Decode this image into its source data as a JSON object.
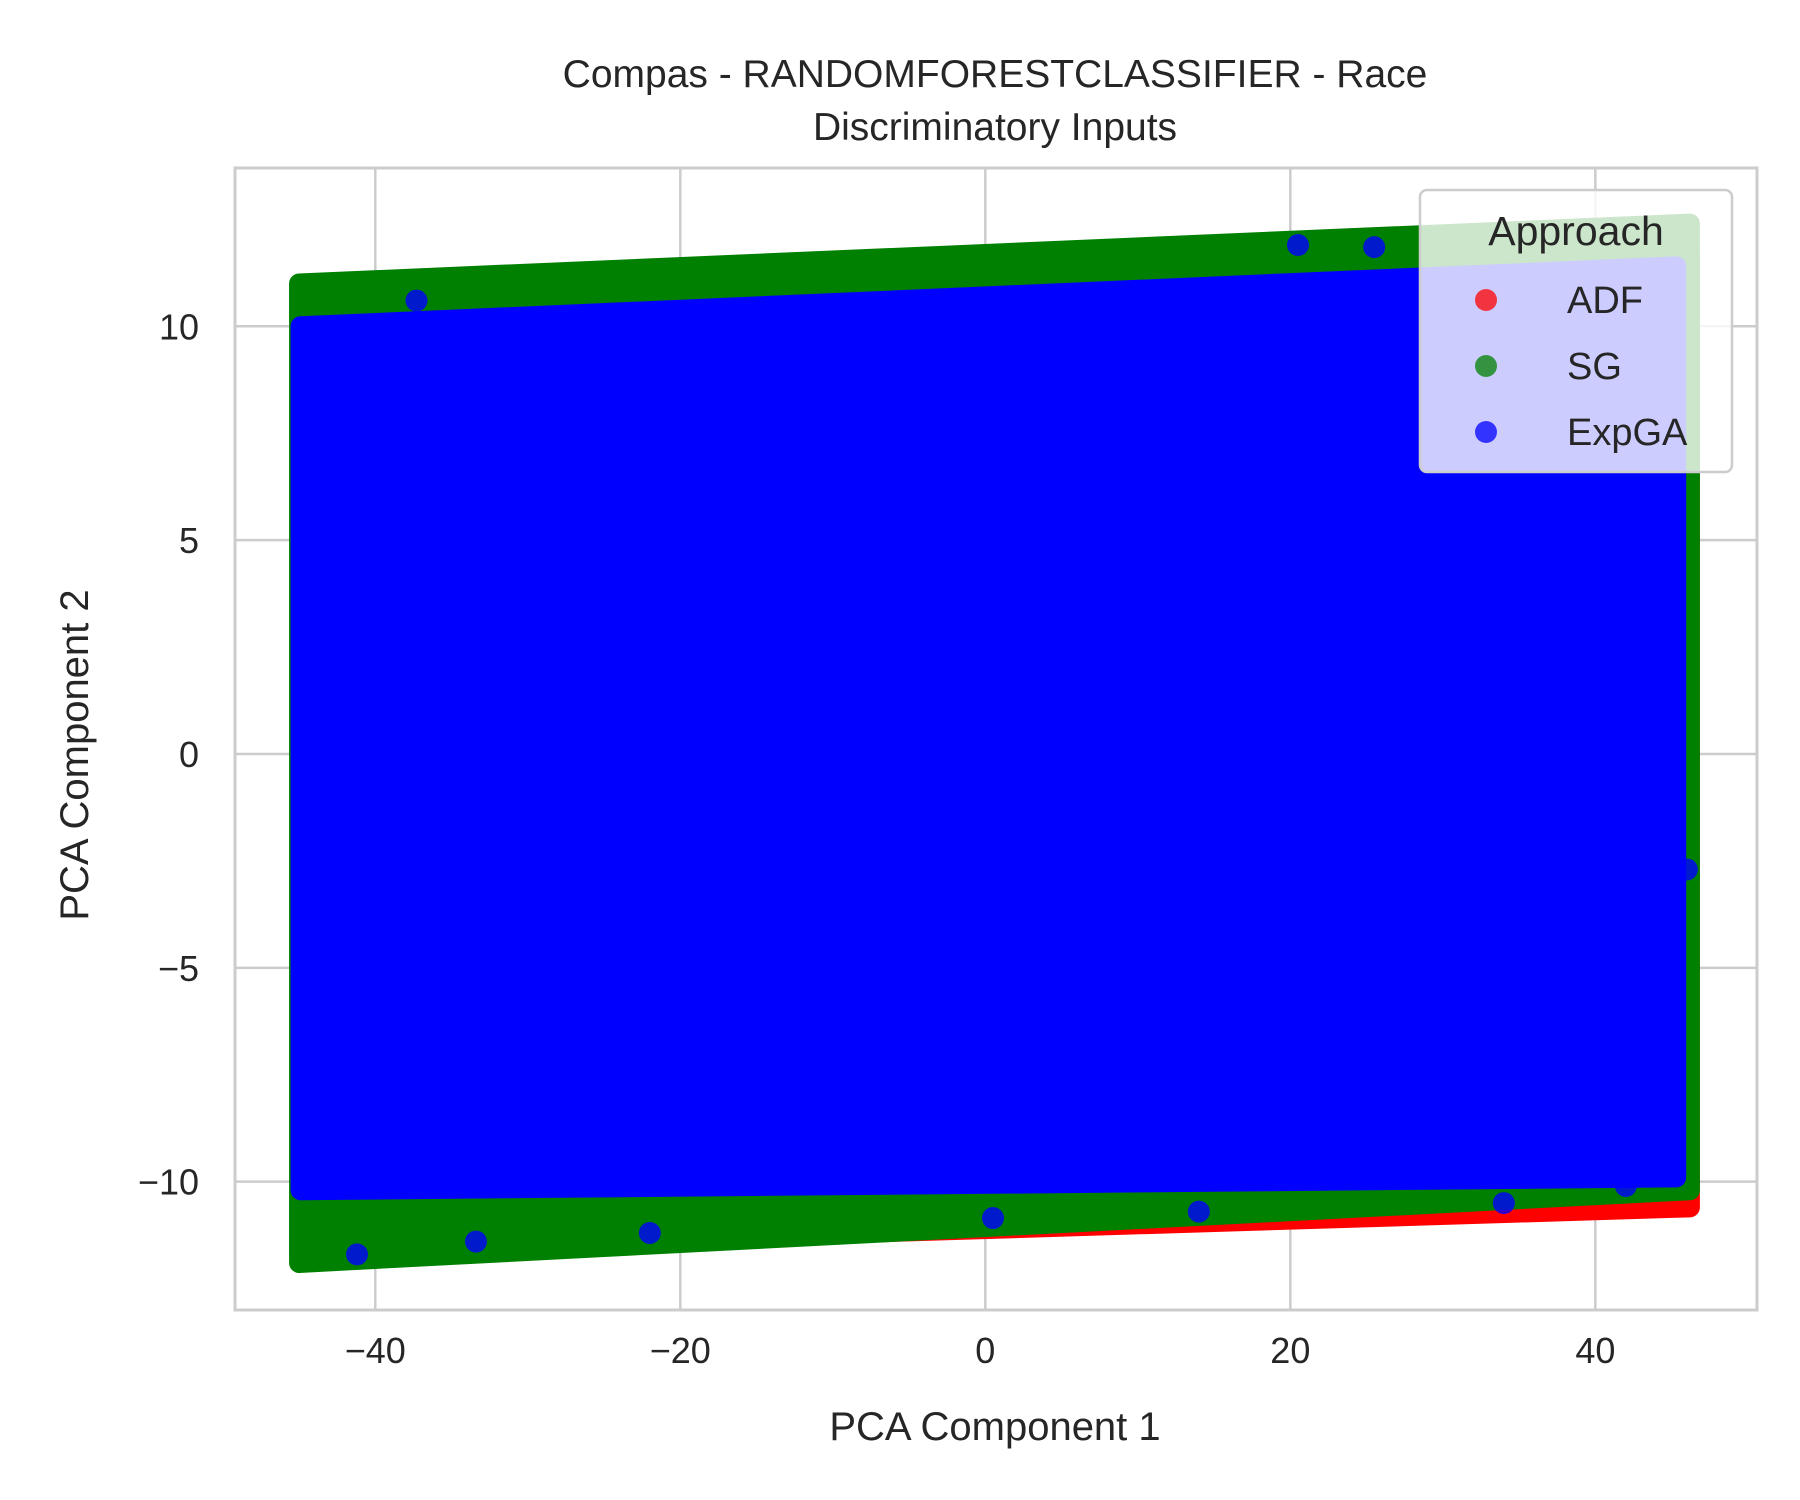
{
  "chart_data": {
    "type": "scatter",
    "title": "Compas - RANDOMFORESTCLASSIFIER - Race",
    "subtitle": "Discriminatory Inputs",
    "xlabel": "PCA Component 1",
    "ylabel": "PCA Component 2",
    "xlim": [
      -49.2,
      50.6
    ],
    "ylim": [
      -13,
      13.7
    ],
    "xticks": [
      -40,
      -20,
      0,
      20,
      40
    ],
    "yticks": [
      -10,
      -5,
      0,
      5,
      10
    ],
    "xtick_labels": [
      "−40",
      "−20",
      "0",
      "20",
      "40"
    ],
    "ytick_labels": [
      "−10",
      "−5",
      "0",
      "5",
      "10"
    ],
    "grid": true,
    "legend": {
      "title": "Approach",
      "position": "top-right",
      "entries": [
        "ADF",
        "SG",
        "ExpGA"
      ]
    },
    "series": [
      {
        "name": "ADF",
        "color": "#ff0000",
        "region": [
          [
            -44.9,
            -11.6
          ],
          [
            46.2,
            -10.6
          ],
          [
            46.2,
            11.7
          ],
          [
            -44.9,
            10.6
          ]
        ],
        "points": [
          [
            -15,
            -11.3
          ],
          [
            10,
            -10.95
          ],
          [
            26,
            -10.75
          ],
          [
            30,
            -10.6
          ],
          [
            36,
            -10.55
          ],
          [
            40,
            -10.3
          ],
          [
            -1,
            -11.05
          ]
        ]
      },
      {
        "name": "SG",
        "color": "#008000",
        "region": [
          [
            -45,
            -11.9
          ],
          [
            46.2,
            -10.2
          ],
          [
            46.2,
            12.4
          ],
          [
            -45,
            11
          ]
        ],
        "points": []
      },
      {
        "name": "ExpGA",
        "color": "#0000ff",
        "region": [
          [
            -44.9,
            -10.2
          ],
          [
            45.3,
            -9.9
          ],
          [
            45.3,
            11.4
          ],
          [
            -44.9,
            10
          ]
        ],
        "points": [
          [
            -37.3,
            10.6
          ],
          [
            20.5,
            11.9
          ],
          [
            25.5,
            11.85
          ],
          [
            -41.2,
            -11.7
          ],
          [
            -33.4,
            -11.4
          ],
          [
            46,
            -2.7
          ],
          [
            -22,
            -11.2
          ],
          [
            0.5,
            -10.85
          ],
          [
            14,
            -10.7
          ],
          [
            34,
            -10.5
          ],
          [
            42,
            -10.1
          ]
        ]
      }
    ]
  }
}
